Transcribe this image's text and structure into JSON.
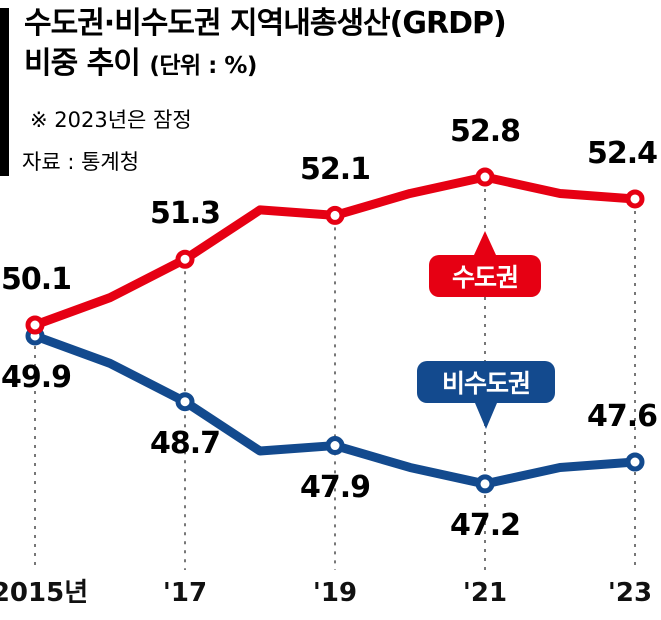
{
  "header": {
    "title_line1": "수도권·비수도권 지역내총생산(GRDP)",
    "title_line2": "비중 추이",
    "unit": "(단위 : %)",
    "note": "※ 2023년은 잠정",
    "source": "자료 : 통계청"
  },
  "chart_data": {
    "type": "line",
    "title": "수도권·비수도권 지역내총생산(GRDP) 비중 추이",
    "unit": "%",
    "x": [
      2015,
      2016,
      2017,
      2018,
      2019,
      2020,
      2021,
      2022,
      2023
    ],
    "ticks": [
      {
        "x": 2015,
        "label": "2015년"
      },
      {
        "x": 2017,
        "label": "'17"
      },
      {
        "x": 2019,
        "label": "'19"
      },
      {
        "x": 2021,
        "label": "'21"
      },
      {
        "x": 2023,
        "label": "'23"
      }
    ],
    "ylim": [
      46.5,
      53.5
    ],
    "grid": "dashed-vertical-at-ticks",
    "legend": "inline-badges",
    "series": [
      {
        "name": "수도권",
        "color": "#e60013",
        "values": [
          50.1,
          50.6,
          51.3,
          52.2,
          52.1,
          52.5,
          52.8,
          52.5,
          52.4
        ],
        "markers_at": [
          2015,
          2017,
          2019,
          2021,
          2023
        ],
        "point_labels": [
          {
            "x": 2015,
            "text": "50.1",
            "side": "above"
          },
          {
            "x": 2017,
            "text": "51.3",
            "side": "above"
          },
          {
            "x": 2019,
            "text": "52.1",
            "side": "above"
          },
          {
            "x": 2021,
            "text": "52.8",
            "side": "above"
          },
          {
            "x": 2023,
            "text": "52.4",
            "side": "above"
          }
        ]
      },
      {
        "name": "비수도권",
        "color": "#134a8e",
        "values": [
          49.9,
          49.4,
          48.7,
          47.8,
          47.9,
          47.5,
          47.2,
          47.5,
          47.6
        ],
        "markers_at": [
          2015,
          2017,
          2019,
          2021,
          2023
        ],
        "point_labels": [
          {
            "x": 2015,
            "text": "49.9",
            "side": "below"
          },
          {
            "x": 2017,
            "text": "48.7",
            "side": "below"
          },
          {
            "x": 2019,
            "text": "47.9",
            "side": "below"
          },
          {
            "x": 2021,
            "text": "47.2",
            "side": "below"
          },
          {
            "x": 2023,
            "text": "47.6",
            "side": "above"
          }
        ]
      }
    ]
  }
}
